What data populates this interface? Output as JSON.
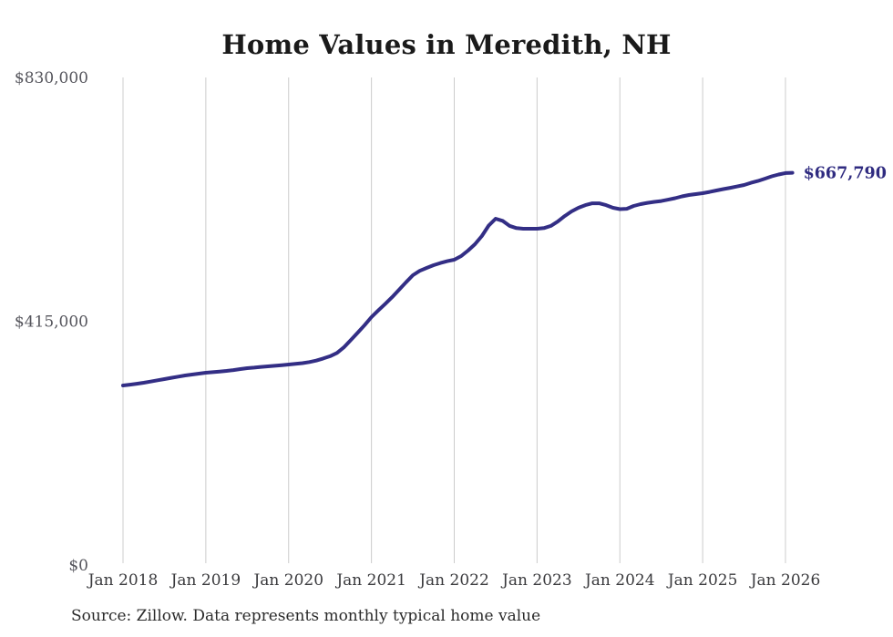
{
  "source_note": "Source: Zillow. Data represents monthly typical home value",
  "colors": {
    "line": "#332e85",
    "end_label": "#2f2b80",
    "grid": "#cccccc",
    "x_tick_text": "#3a3a3d",
    "y_tick_text": "#55555c",
    "title_text": "#1a1a1a",
    "background": "#ffffff"
  },
  "chart_data": {
    "type": "line",
    "title": "Home Values in Meredith, NH",
    "xlabel": "",
    "ylabel": "",
    "ylim": [
      0,
      830000
    ],
    "grid": "vertical-only",
    "legend": "none",
    "x_tick_labels": [
      "Jan 2018",
      "Jan 2019",
      "Jan 2020",
      "Jan 2021",
      "Jan 2022",
      "Jan 2023",
      "Jan 2024",
      "Jan 2025",
      "Jan 2026"
    ],
    "y_ticks": [
      {
        "value": 0,
        "label": "$0"
      },
      {
        "value": 415000,
        "label": "$415,000"
      },
      {
        "value": 830000,
        "label": "$830,000"
      }
    ],
    "x_start": "Jan 2018",
    "x_end": "Feb 2026",
    "cadence": "monthly",
    "series": [
      {
        "name": "Typical home value",
        "end_value": 667790,
        "end_label": "$667,790",
        "monthly_values": [
          305600,
          307000,
          308600,
          310300,
          312300,
          314400,
          316500,
          318600,
          320700,
          322700,
          324300,
          325800,
          327300,
          328300,
          329400,
          330400,
          331900,
          333500,
          335100,
          336100,
          337200,
          338200,
          339200,
          340200,
          341300,
          342500,
          343700,
          345500,
          348000,
          351500,
          355400,
          361000,
          370500,
          382800,
          395500,
          408300,
          422000,
          433500,
          444600,
          456000,
          468500,
          481300,
          493300,
          500800,
          505800,
          510400,
          514200,
          517200,
          519700,
          526000,
          535200,
          546100,
          560000,
          578000,
          589500,
          586000,
          577500,
          573500,
          572500,
          572400,
          572400,
          573500,
          577200,
          584800,
          594000,
          601900,
          608100,
          612700,
          615800,
          615800,
          612700,
          608100,
          605800,
          606500,
          611200,
          614300,
          616600,
          618200,
          619700,
          622000,
          624400,
          627500,
          629800,
          631400,
          632900,
          635200,
          637600,
          639900,
          642200,
          644500,
          646900,
          650700,
          653800,
          657700,
          661600,
          664700,
          667200,
          667790
        ]
      }
    ]
  }
}
